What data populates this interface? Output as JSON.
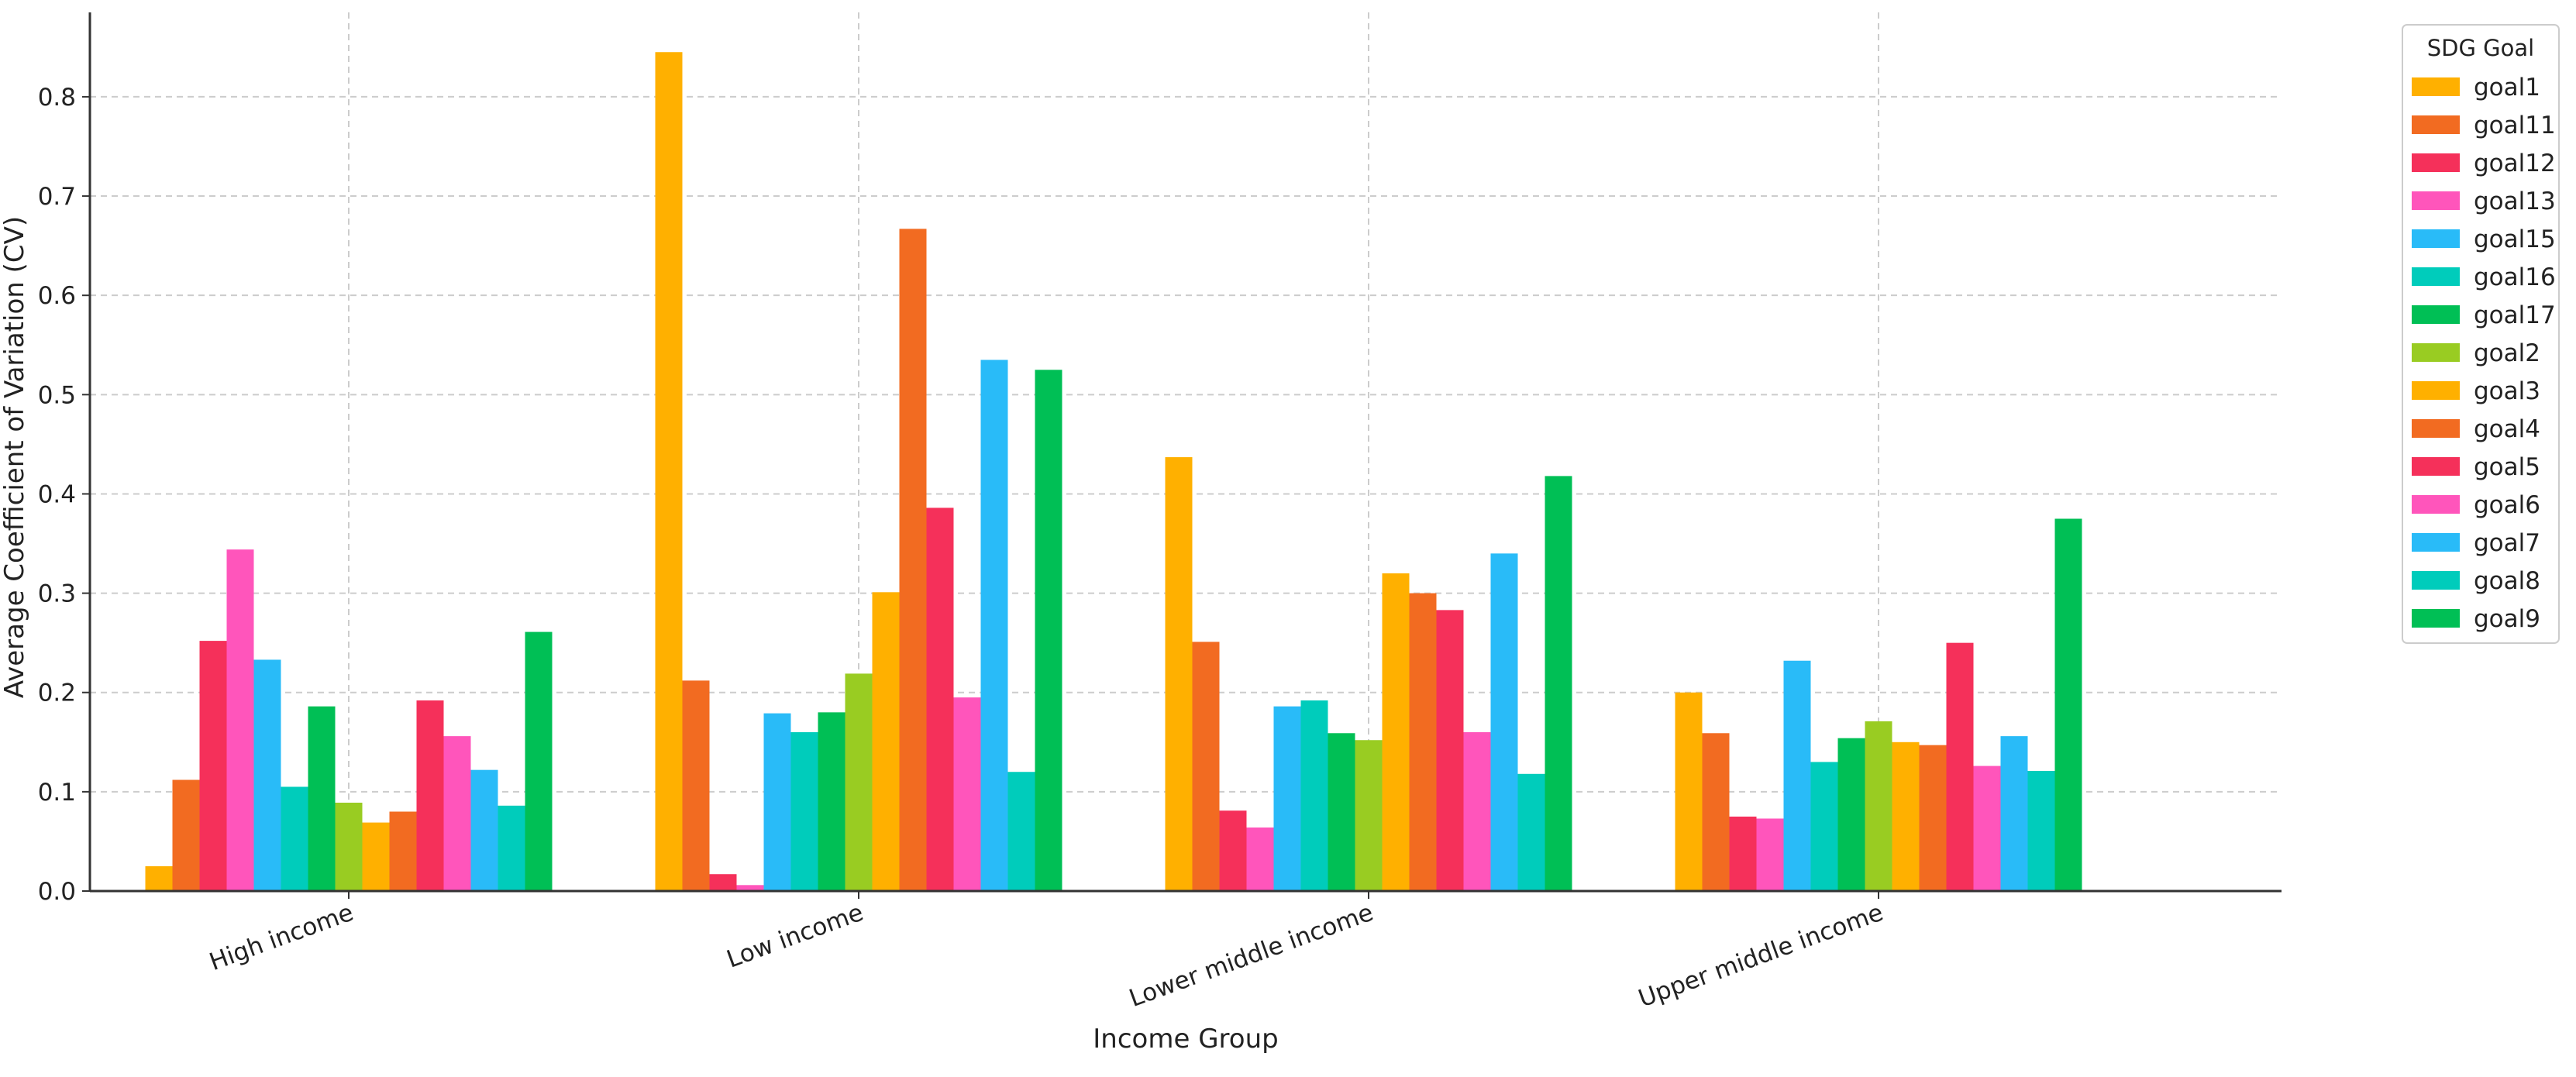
{
  "chart_data": {
    "type": "bar",
    "title": "",
    "xlabel": "Income Group",
    "ylabel": "Average Coefficient of Variation (CV)",
    "ylim": [
      0,
      0.885
    ],
    "yticks": [
      "0.0",
      "0.1",
      "0.2",
      "0.3",
      "0.4",
      "0.5",
      "0.6",
      "0.7",
      "0.8"
    ],
    "grid": true,
    "legend_position": "top-right, outside plot",
    "categories": [
      "High income",
      "Low income",
      "Lower middle income",
      "Upper middle income"
    ],
    "legend_title": "SDG Goal",
    "series": [
      {
        "name": "goal1",
        "color": "#FFB000",
        "values": [
          0.025,
          0.845,
          0.437,
          0.2
        ]
      },
      {
        "name": "goal11",
        "color": "#F26B21",
        "values": [
          0.112,
          0.212,
          0.251,
          0.159
        ]
      },
      {
        "name": "goal12",
        "color": "#F5305A",
        "values": [
          0.252,
          0.017,
          0.081,
          0.075
        ]
      },
      {
        "name": "goal13",
        "color": "#FF55BB",
        "values": [
          0.344,
          0.006,
          0.064,
          0.073
        ]
      },
      {
        "name": "goal15",
        "color": "#29BBF8",
        "values": [
          0.233,
          0.179,
          0.186,
          0.232
        ]
      },
      {
        "name": "goal16",
        "color": "#00CCBB",
        "values": [
          0.105,
          0.16,
          0.192,
          0.13
        ]
      },
      {
        "name": "goal17",
        "color": "#00BF55",
        "values": [
          0.186,
          0.18,
          0.159,
          0.154
        ]
      },
      {
        "name": "goal2",
        "color": "#99CC22",
        "values": [
          0.089,
          0.219,
          0.152,
          0.171
        ]
      },
      {
        "name": "goal3",
        "color": "#FFB000",
        "values": [
          0.069,
          0.301,
          0.32,
          0.15
        ]
      },
      {
        "name": "goal4",
        "color": "#F26B21",
        "values": [
          0.08,
          0.667,
          0.3,
          0.147
        ]
      },
      {
        "name": "goal5",
        "color": "#F5305A",
        "values": [
          0.192,
          0.386,
          0.283,
          0.25
        ]
      },
      {
        "name": "goal6",
        "color": "#FF55BB",
        "values": [
          0.156,
          0.195,
          0.16,
          0.126
        ]
      },
      {
        "name": "goal7",
        "color": "#29BBF8",
        "values": [
          0.122,
          0.535,
          0.34,
          0.156
        ]
      },
      {
        "name": "goal8",
        "color": "#00CCBB",
        "values": [
          0.086,
          0.12,
          0.118,
          0.121
        ]
      },
      {
        "name": "goal9",
        "color": "#00BF55",
        "values": [
          0.261,
          0.525,
          0.418,
          0.375
        ]
      }
    ]
  }
}
